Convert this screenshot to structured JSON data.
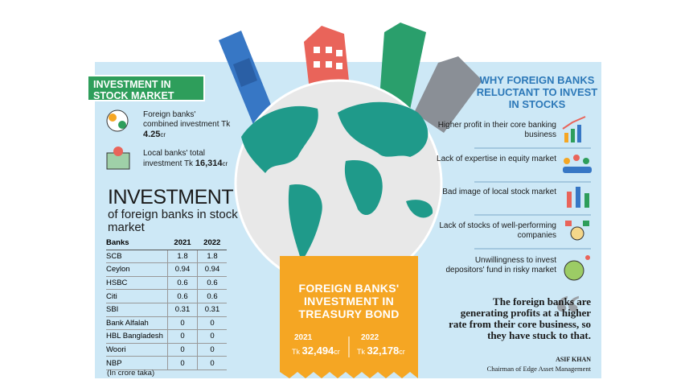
{
  "left": {
    "header": "INVESTMENT IN STOCK MARKET",
    "items": [
      {
        "label": "Foreign banks' combined investment Tk",
        "value": "4.25",
        "unit": "cr"
      },
      {
        "label": "Local banks' total investment Tk",
        "value": "16,314",
        "unit": "cr"
      }
    ],
    "table": {
      "title": "INVESTMENT",
      "subtitle": "of foreign banks in stock market",
      "columns": [
        "Banks",
        "2021",
        "2022"
      ],
      "rows": [
        [
          "SCB",
          1.8,
          1.8
        ],
        [
          "Ceylon",
          0.94,
          0.94
        ],
        [
          "HSBC",
          0.6,
          0.6
        ],
        [
          "Citi",
          0.6,
          0.6
        ],
        [
          "SBI",
          0.31,
          0.31
        ],
        [
          "Bank Alfalah",
          0,
          0
        ],
        [
          "HBL Bangladesh",
          0,
          0
        ],
        [
          "Woori",
          0,
          0
        ],
        [
          "NBP",
          0,
          0
        ]
      ],
      "note": "(In crore taka)"
    }
  },
  "center": {
    "title": "FOREIGN BANKS' INVESTMENT IN TREASURY BOND",
    "bonds": [
      {
        "year": "2021",
        "prefix": "Tk",
        "value": "32,494",
        "unit": "cr"
      },
      {
        "year": "2022",
        "prefix": "Tk",
        "value": "32,178",
        "unit": "cr"
      }
    ]
  },
  "right": {
    "title": "WHY FOREIGN BANKS RELUCTANT TO INVEST IN STOCKS",
    "reasons": [
      "Higher profit in their core banking business",
      "Lack of expertise in equity market",
      "Bad image of local stock market",
      "Lack of stocks of well-performing companies",
      "Unwillingness to invest depositors' fund in risky market"
    ],
    "quote": {
      "text": "The foreign banks are generating profits at a higher rate from their core business, so they have stuck to that.",
      "author": "ASIF KHAN",
      "role": "Chairman of Edge Asset Management"
    }
  }
}
